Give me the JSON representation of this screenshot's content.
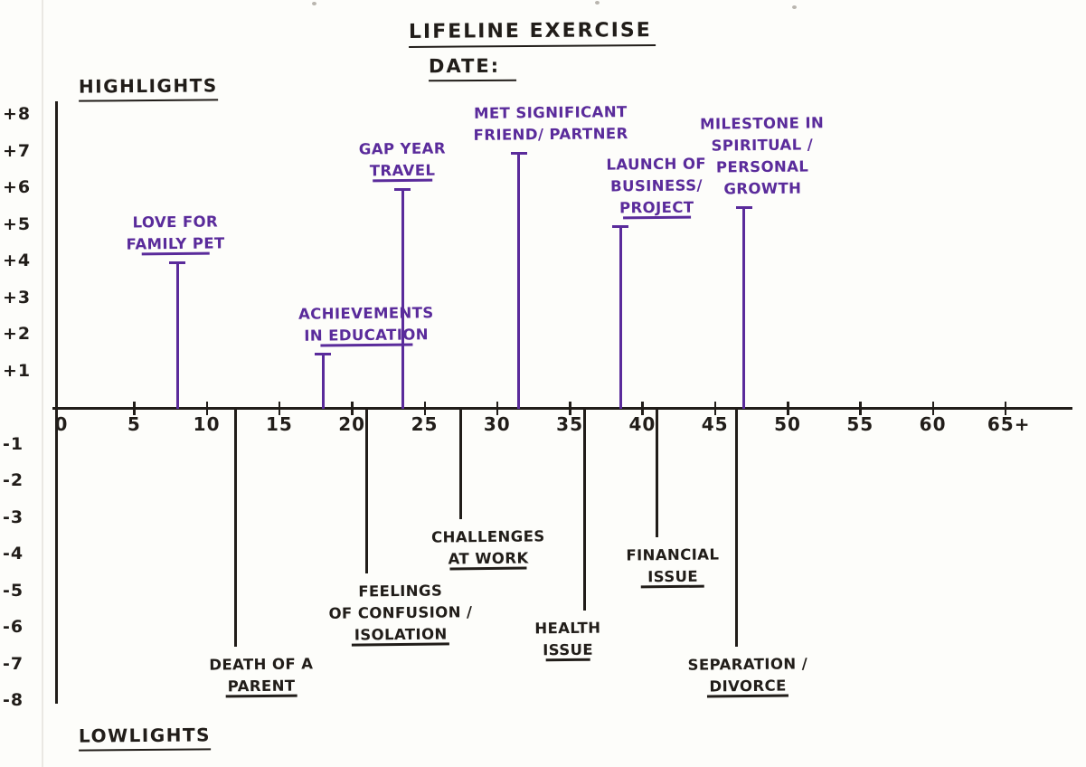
{
  "page": {
    "title": "LIFELINE EXERCISE",
    "date_label": "DATE:",
    "highlights_label": "HIGHLIGHTS",
    "lowlights_label": "LOWLIGHTS"
  },
  "colors": {
    "paper": "#fdfdfa",
    "ink_black": "#211d19",
    "accent_purple": "#5a2b9b"
  },
  "chart_data": {
    "type": "line",
    "title": "Lifeline Exercise",
    "xlabel": "",
    "ylabel": "",
    "xlim": [
      0,
      67
    ],
    "ylim": [
      -8,
      8
    ],
    "grid": false,
    "x_ticks": [
      {
        "age": 0,
        "label": "0"
      },
      {
        "age": 5,
        "label": "5"
      },
      {
        "age": 10,
        "label": "10"
      },
      {
        "age": 15,
        "label": "15"
      },
      {
        "age": 20,
        "label": "20"
      },
      {
        "age": 25,
        "label": "25"
      },
      {
        "age": 30,
        "label": "30"
      },
      {
        "age": 35,
        "label": "35"
      },
      {
        "age": 40,
        "label": "40"
      },
      {
        "age": 45,
        "label": "45"
      },
      {
        "age": 50,
        "label": "50"
      },
      {
        "age": 55,
        "label": "55"
      },
      {
        "age": 60,
        "label": "60"
      },
      {
        "age": 65,
        "label": "65+"
      }
    ],
    "y_ticks": [
      {
        "value": 8,
        "label": "+8"
      },
      {
        "value": 7,
        "label": "+7"
      },
      {
        "value": 6,
        "label": "+6"
      },
      {
        "value": 5,
        "label": "+5"
      },
      {
        "value": 4,
        "label": "+4"
      },
      {
        "value": 3,
        "label": "+3"
      },
      {
        "value": 2,
        "label": "+2"
      },
      {
        "value": 1,
        "label": "+1"
      },
      {
        "value": -1,
        "label": "-1"
      },
      {
        "value": -2,
        "label": "-2"
      },
      {
        "value": -3,
        "label": "-3"
      },
      {
        "value": -4,
        "label": "-4"
      },
      {
        "value": -5,
        "label": "-5"
      },
      {
        "value": -6,
        "label": "-6"
      },
      {
        "value": -7,
        "label": "-7"
      },
      {
        "value": -8,
        "label": "-8"
      }
    ],
    "highlights": [
      {
        "event": "Love for family pet",
        "age": 8,
        "value": 4,
        "label_dx": -2,
        "label_lines": [
          {
            "t": "LOVE FOR",
            "u": false
          },
          {
            "t": "FAMILY PET",
            "u": true
          }
        ]
      },
      {
        "event": "Achievements in education",
        "age": 18,
        "value": 1.5,
        "label_dx": 48,
        "label_lines": [
          {
            "t": "ACHIEVEMENTS",
            "u": false
          },
          {
            "t": "IN EDUCATION",
            "u": true
          }
        ]
      },
      {
        "event": "Gap year travel",
        "age": 23.5,
        "value": 6,
        "label_dx": 0,
        "label_lines": [
          {
            "t": "GAP YEAR",
            "u": false
          },
          {
            "t": "TRAVEL",
            "u": true
          }
        ]
      },
      {
        "event": "Met significant friend/partner",
        "age": 31.5,
        "value": 7,
        "label_dx": 35,
        "label_lines": [
          {
            "t": "MET SIGNIFICANT",
            "u": false
          },
          {
            "t": "FRIEND/ PARTNER",
            "u": false
          }
        ]
      },
      {
        "event": "Launch of business/project",
        "age": 38.5,
        "value": 5,
        "label_dx": 40,
        "label_lines": [
          {
            "t": "LAUNCH OF",
            "u": false
          },
          {
            "t": "BUSINESS/",
            "u": false
          },
          {
            "t": "PROJECT",
            "u": true
          }
        ]
      },
      {
        "event": "Milestone in spiritual/personal growth",
        "age": 47,
        "value": 5.5,
        "label_dx": 20,
        "label_lines": [
          {
            "t": "MILESTONE IN",
            "u": false
          },
          {
            "t": "SPIRITUAL /",
            "u": false
          },
          {
            "t": "PERSONAL",
            "u": false
          },
          {
            "t": "GROWTH",
            "u": false
          }
        ]
      }
    ],
    "lowlights": [
      {
        "event": "Death of a parent",
        "age": 12,
        "value": -6.5,
        "label_dx": 28,
        "label_lines": [
          {
            "t": "DEATH OF A",
            "u": false
          },
          {
            "t": "PARENT",
            "u": true
          }
        ]
      },
      {
        "event": "Feelings of confusion/isolation",
        "age": 21,
        "value": -4.5,
        "label_dx": 38,
        "label_lines": [
          {
            "t": "FEELINGS",
            "u": false
          },
          {
            "t": "OF CONFUSION /",
            "u": false
          },
          {
            "t": "ISOLATION",
            "u": true
          }
        ]
      },
      {
        "event": "Challenges at work",
        "age": 27.5,
        "value": -3,
        "label_dx": 30,
        "label_lines": [
          {
            "t": "CHALLENGES",
            "u": false
          },
          {
            "t": "AT WORK",
            "u": true
          }
        ]
      },
      {
        "event": "Health issue",
        "age": 36,
        "value": -5.5,
        "label_dx": -18,
        "label_lines": [
          {
            "t": "HEALTH",
            "u": false
          },
          {
            "t": "ISSUE",
            "u": true
          }
        ]
      },
      {
        "event": "Financial issue",
        "age": 41,
        "value": -3.5,
        "label_dx": 18,
        "label_lines": [
          {
            "t": "FINANCIAL",
            "u": false
          },
          {
            "t": "ISSUE",
            "u": true
          }
        ]
      },
      {
        "event": "Separation/divorce",
        "age": 46.5,
        "value": -6.5,
        "label_dx": 12,
        "label_lines": [
          {
            "t": "SEPARATION /",
            "u": false
          },
          {
            "t": "DIVORCE",
            "u": true
          }
        ]
      }
    ]
  }
}
